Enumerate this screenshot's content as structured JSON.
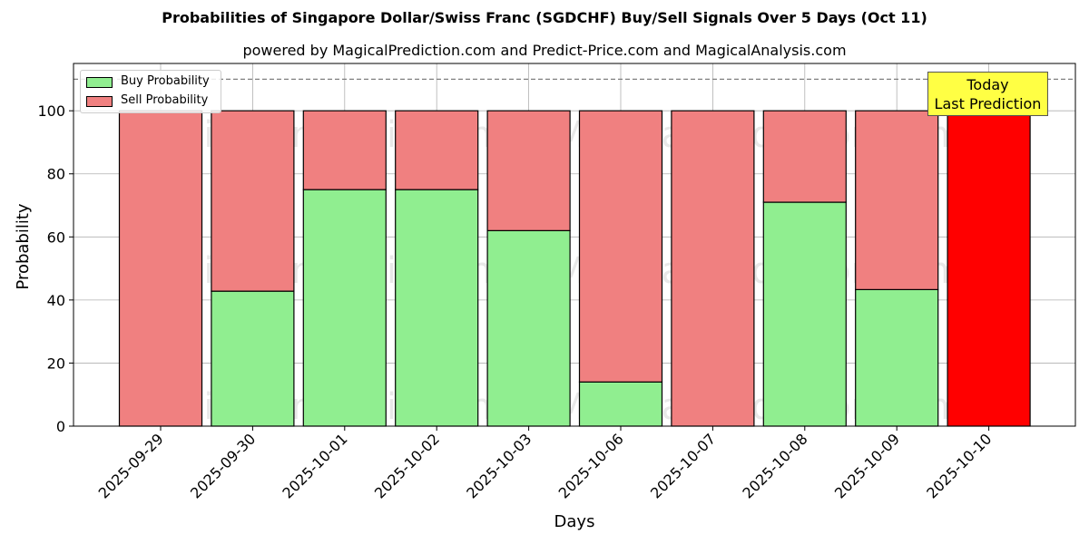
{
  "title": "Probabilities of Singapore Dollar/Swiss Franc (SGDCHF) Buy/Sell Signals Over 5 Days (Oct 11)",
  "subtitle": "powered by MagicalPrediction.com and Predict-Price.com and MagicalAnalysis.com",
  "watermarks": [
    "MagicalAnalysis.com",
    "MagicalPrediction.com"
  ],
  "annotation": {
    "line1": "Today",
    "line2": "Last Prediction"
  },
  "colors": {
    "buy": "#90ee90",
    "sell": "#f08080",
    "today": "#ff0000",
    "annotation_bg": "#ffff44"
  },
  "chart_data": {
    "type": "bar",
    "stacked": true,
    "xlabel": "Days",
    "ylabel": "Probability",
    "ylim": [
      0,
      115
    ],
    "yticks": [
      0,
      20,
      40,
      60,
      80,
      100
    ],
    "reference_line": 110,
    "grid": true,
    "legend_position": "top-left",
    "categories": [
      "2025-09-29",
      "2025-09-30",
      "2025-10-01",
      "2025-10-02",
      "2025-10-03",
      "2025-10-06",
      "2025-10-07",
      "2025-10-08",
      "2025-10-09",
      "2025-10-10"
    ],
    "series": [
      {
        "name": "Buy Probability",
        "values": [
          0,
          42.8,
          75,
          75,
          62,
          14,
          0,
          71,
          43.3,
          0
        ]
      },
      {
        "name": "Sell Probability",
        "values": [
          100,
          57.2,
          25,
          25,
          38,
          86,
          100,
          29,
          56.7,
          100
        ]
      }
    ]
  }
}
